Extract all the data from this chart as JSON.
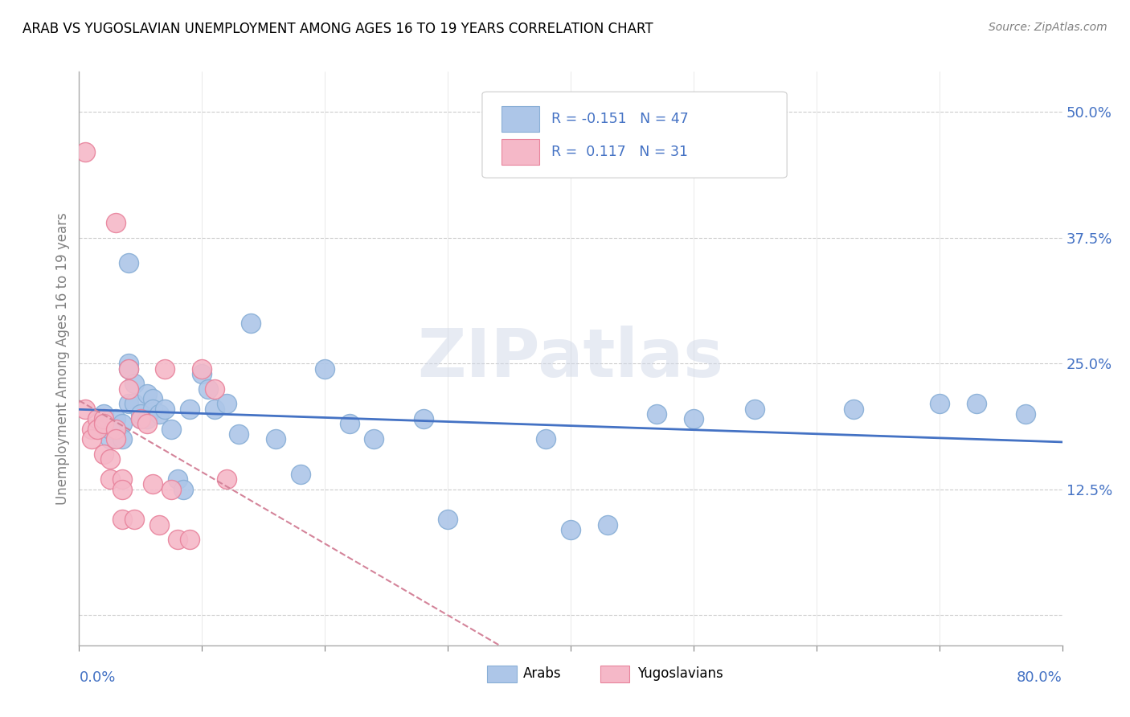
{
  "title": "ARAB VS YUGOSLAVIAN UNEMPLOYMENT AMONG AGES 16 TO 19 YEARS CORRELATION CHART",
  "source": "Source: ZipAtlas.com",
  "ylabel": "Unemployment Among Ages 16 to 19 years",
  "xlim": [
    0.0,
    0.8
  ],
  "ylim": [
    -0.03,
    0.54
  ],
  "yticks": [
    0.0,
    0.125,
    0.25,
    0.375,
    0.5
  ],
  "ytick_labels": [
    "",
    "12.5%",
    "25.0%",
    "37.5%",
    "50.0%"
  ],
  "xticks": [
    0.0,
    0.1,
    0.2,
    0.3,
    0.4,
    0.5,
    0.6,
    0.7,
    0.8
  ],
  "watermark": "ZIPatlas",
  "arab_color": "#adc6e8",
  "arab_edge_color": "#89afd6",
  "yugo_color": "#f5b8c8",
  "yugo_edge_color": "#e8839c",
  "arab_line_color": "#4472c4",
  "yugo_line_color": "#d4849a",
  "tick_color": "#4472c4",
  "arab_x": [
    0.02,
    0.025,
    0.03,
    0.035,
    0.035,
    0.04,
    0.04,
    0.04,
    0.045,
    0.045,
    0.05,
    0.05,
    0.055,
    0.055,
    0.06,
    0.06,
    0.065,
    0.07,
    0.075,
    0.08,
    0.085,
    0.09,
    0.1,
    0.105,
    0.11,
    0.12,
    0.13,
    0.14,
    0.16,
    0.18,
    0.2,
    0.22,
    0.24,
    0.28,
    0.3,
    0.38,
    0.4,
    0.43,
    0.47,
    0.5,
    0.55,
    0.63,
    0.7,
    0.73,
    0.77,
    0.04,
    0.025
  ],
  "arab_y": [
    0.2,
    0.175,
    0.195,
    0.19,
    0.175,
    0.25,
    0.245,
    0.21,
    0.23,
    0.21,
    0.195,
    0.2,
    0.22,
    0.195,
    0.215,
    0.205,
    0.2,
    0.205,
    0.185,
    0.135,
    0.125,
    0.205,
    0.24,
    0.225,
    0.205,
    0.21,
    0.18,
    0.29,
    0.175,
    0.14,
    0.245,
    0.19,
    0.175,
    0.195,
    0.095,
    0.175,
    0.085,
    0.09,
    0.2,
    0.195,
    0.205,
    0.205,
    0.21,
    0.21,
    0.2,
    0.35,
    0.185
  ],
  "yugo_x": [
    0.005,
    0.01,
    0.01,
    0.015,
    0.015,
    0.02,
    0.02,
    0.02,
    0.025,
    0.025,
    0.03,
    0.03,
    0.035,
    0.035,
    0.035,
    0.04,
    0.04,
    0.045,
    0.05,
    0.055,
    0.06,
    0.065,
    0.07,
    0.075,
    0.08,
    0.09,
    0.1,
    0.11,
    0.12,
    0.005,
    0.03
  ],
  "yugo_y": [
    0.205,
    0.185,
    0.175,
    0.195,
    0.185,
    0.195,
    0.19,
    0.16,
    0.155,
    0.135,
    0.185,
    0.175,
    0.135,
    0.095,
    0.125,
    0.245,
    0.225,
    0.095,
    0.195,
    0.19,
    0.13,
    0.09,
    0.245,
    0.125,
    0.075,
    0.075,
    0.245,
    0.225,
    0.135,
    0.46,
    0.39
  ]
}
